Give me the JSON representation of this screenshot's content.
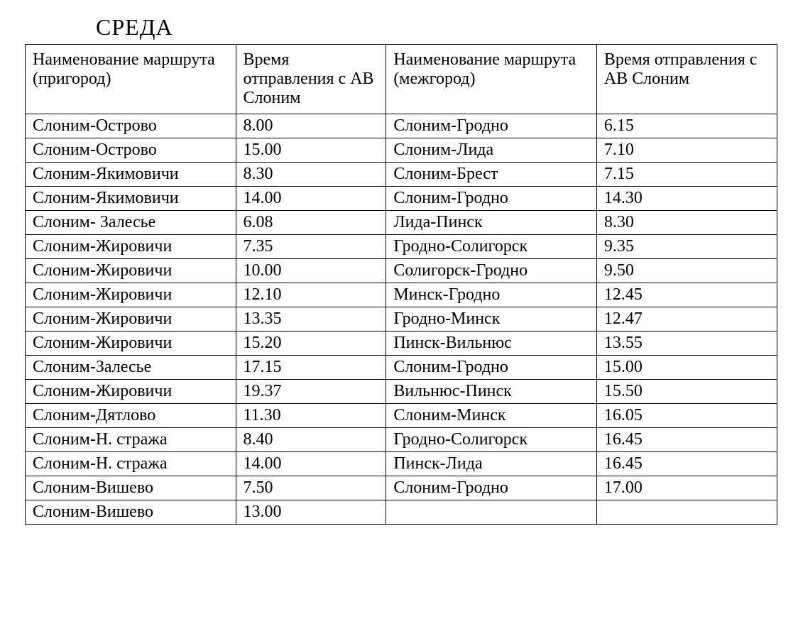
{
  "title": "СРЕДА",
  "table": {
    "columns": [
      "Наименование маршрута (пригород)",
      "Время отправления с АВ Слоним",
      "Наименование маршрута (межгород)",
      "Время отправления с АВ Слоним"
    ],
    "rows": [
      [
        "Слоним-Острово",
        "8.00",
        "Слоним-Гродно",
        "6.15"
      ],
      [
        "Слоним-Острово",
        "15.00",
        "Слоним-Лида",
        "7.10"
      ],
      [
        "Слоним-Якимовичи",
        "8.30",
        "Слоним-Брест",
        "7.15"
      ],
      [
        "Слоним-Якимовичи",
        "14.00",
        "Слоним-Гродно",
        "14.30"
      ],
      [
        "Слоним- Залесье",
        "6.08",
        "Лида-Пинск",
        "8.30"
      ],
      [
        "Слоним-Жировичи",
        "7.35",
        "Гродно-Солигорск",
        "9.35"
      ],
      [
        "Слоним-Жировичи",
        "10.00",
        "Солигорск-Гродно",
        "9.50"
      ],
      [
        "Слоним-Жировичи",
        "12.10",
        "Минск-Гродно",
        "12.45"
      ],
      [
        "Слоним-Жировичи",
        "13.35",
        "Гродно-Минск",
        "12.47"
      ],
      [
        "Слоним-Жировичи",
        "15.20",
        "Пинск-Вильнюс",
        "13.55"
      ],
      [
        "Слоним-Залесье",
        "17.15",
        "Слоним-Гродно",
        "15.00"
      ],
      [
        "Слоним-Жировичи",
        "19.37",
        "Вильнюс-Пинск",
        "15.50"
      ],
      [
        "Слоним-Дятлово",
        "11.30",
        "Слоним-Минск",
        "16.05"
      ],
      [
        "Слоним-Н. стража",
        "8.40",
        "Гродно-Солигорск",
        "16.45"
      ],
      [
        "Слоним-Н. стража",
        "14.00",
        "Пинск-Лида",
        "16.45"
      ],
      [
        "Слоним-Вишево",
        "7.50",
        "Слоним-Гродно",
        "17.00"
      ],
      [
        "Слоним-Вишево",
        "13.00",
        "",
        ""
      ]
    ],
    "border_color": "#000000",
    "background_color": "#ffffff",
    "text_color": "#000000",
    "font_family": "Times New Roman",
    "header_fontsize": 24,
    "cell_fontsize": 24,
    "column_widths": [
      "28%",
      "20%",
      "28%",
      "24%"
    ]
  }
}
